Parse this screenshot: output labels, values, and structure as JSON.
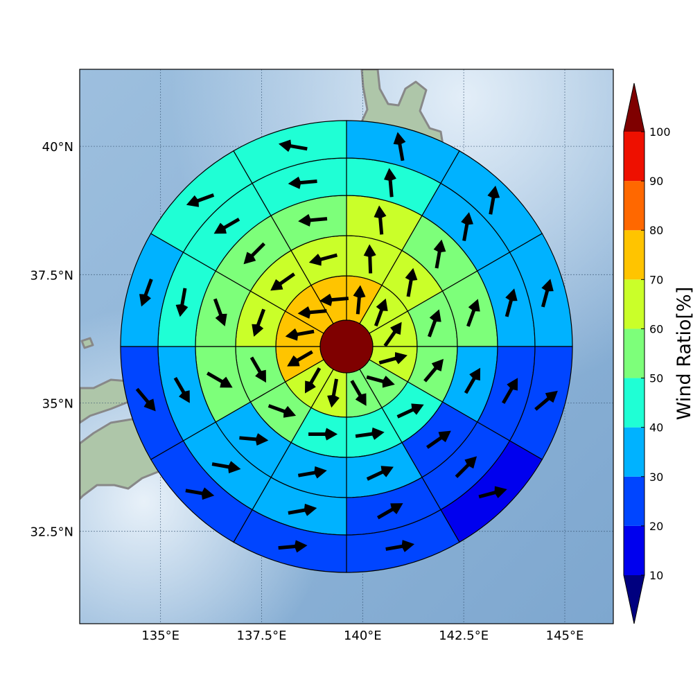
{
  "chart_data": {
    "type": "heatmap",
    "description_kind": "polar-sector wind ratio map with vectors",
    "map_extent": {
      "lon": [
        133.0,
        146.2
      ],
      "lat": [
        30.7,
        41.5
      ]
    },
    "center": {
      "lon": 139.6,
      "lat": 36.1
    },
    "grid": true,
    "x_ticks": [
      {
        "value": 135.0,
        "label": "135°E"
      },
      {
        "value": 137.5,
        "label": "137.5°E"
      },
      {
        "value": 140.0,
        "label": "140°E"
      },
      {
        "value": 142.5,
        "label": "142.5°E"
      },
      {
        "value": 145.0,
        "label": "145°E"
      }
    ],
    "y_ticks": [
      {
        "value": 40.0,
        "label": "40°N"
      },
      {
        "value": 37.5,
        "label": "37.5°N"
      },
      {
        "value": 35.0,
        "label": "35°N"
      },
      {
        "value": 32.5,
        "label": "32.5°N"
      }
    ],
    "sector_directions_deg_clockwise_from_north": [
      "0-30",
      "30-60",
      "60-90",
      "90-120",
      "120-150",
      "150-180",
      "180-210",
      "210-240",
      "240-270",
      "270-300",
      "300-330",
      "330-360"
    ],
    "center_value": 100,
    "rings": [
      {
        "name": "ring1",
        "values": [
          75,
          65,
          65,
          65,
          55,
          55,
          65,
          65,
          75,
          75,
          75,
          75
        ],
        "wind_dir_deg": [
          95,
          110,
          125,
          165,
          195,
          240,
          280,
          300,
          330,
          350,
          355,
          355
        ]
      },
      {
        "name": "ring2",
        "values": [
          65,
          65,
          55,
          55,
          45,
          45,
          45,
          55,
          55,
          65,
          65,
          65
        ],
        "wind_dir_deg": [
          88,
          100,
          110,
          130,
          155,
          172,
          180,
          200,
          240,
          290,
          325,
          345
        ]
      },
      {
        "name": "ring3",
        "values": [
          65,
          55,
          55,
          35,
          25,
          35,
          35,
          35,
          55,
          55,
          55,
          55
        ],
        "wind_dir_deg": [
          85,
          100,
          110,
          120,
          145,
          155,
          170,
          185,
          210,
          250,
          315,
          355
        ]
      },
      {
        "name": "ring4",
        "values": [
          45,
          35,
          35,
          25,
          25,
          25,
          35,
          35,
          35,
          45,
          45,
          45
        ],
        "wind_dir_deg": [
          85,
          100,
          105,
          120,
          135,
          150,
          170,
          190,
          240,
          280,
          330,
          355
        ]
      },
      {
        "name": "ring5",
        "values": [
          35,
          35,
          35,
          25,
          15,
          25,
          25,
          25,
          25,
          35,
          45,
          45
        ],
        "wind_dir_deg": [
          80,
          100,
          105,
          140,
          165,
          170,
          175,
          190,
          230,
          290,
          340,
          10
        ]
      }
    ],
    "colorbar": {
      "label": "Wind Ratio[%]",
      "tick_values": [
        10,
        20,
        30,
        40,
        50,
        60,
        70,
        80,
        90,
        100
      ],
      "tick_labels": [
        "10",
        "20",
        "30",
        "40",
        "50",
        "60",
        "70",
        "80",
        "90",
        "100"
      ],
      "bins": [
        {
          "range": [
            10,
            20
          ],
          "color": "#0000ee"
        },
        {
          "range": [
            20,
            30
          ],
          "color": "#0045ff"
        },
        {
          "range": [
            30,
            40
          ],
          "color": "#00b2ff"
        },
        {
          "range": [
            40,
            50
          ],
          "color": "#1fffd5"
        },
        {
          "range": [
            50,
            60
          ],
          "color": "#7dff7a"
        },
        {
          "range": [
            60,
            70
          ],
          "color": "#caff29"
        },
        {
          "range": [
            70,
            80
          ],
          "color": "#ffc400"
        },
        {
          "range": [
            80,
            90
          ],
          "color": "#ff6800"
        },
        {
          "range": [
            90,
            100
          ],
          "color": "#ee1000"
        }
      ],
      "under_color": "#00007f",
      "over_color": "#7f0000",
      "extend": "both"
    },
    "colors": {
      "ocean": "#8fb4d6",
      "ocean_light": "#c8ddef",
      "land": "#a9c4a8",
      "coastline": "#808080",
      "sector_edge": "#000000",
      "arrow": "#000000"
    }
  }
}
